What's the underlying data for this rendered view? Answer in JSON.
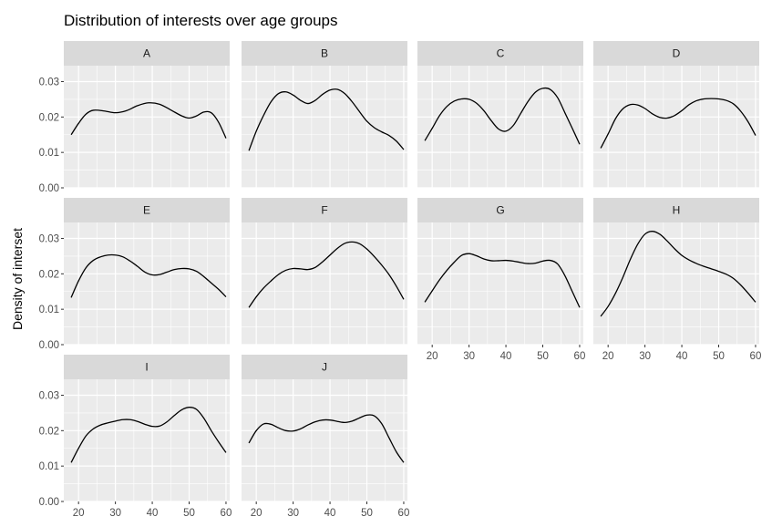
{
  "chart_data": {
    "type": "line",
    "title": "Distribution of interests over age groups",
    "xlabel": "",
    "ylabel": "Density of interset",
    "xlim": [
      16,
      61
    ],
    "ylim": [
      0,
      0.0345
    ],
    "xticks": [
      20,
      30,
      40,
      50,
      60
    ],
    "xtick_labels": [
      "20",
      "30",
      "40",
      "50",
      "60"
    ],
    "yticks": [
      0,
      0.01,
      0.02,
      0.03
    ],
    "ytick_labels": [
      "0.00",
      "0.01",
      "0.02",
      "0.03"
    ],
    "grid": true,
    "panel_color": "#ebebeb",
    "strip_color": "#d9d9d9",
    "line_color": "#000000",
    "panels": [
      {
        "name": "A",
        "x": [
          18,
          20,
          22,
          24,
          27,
          30,
          33,
          36,
          39,
          42,
          45,
          48,
          50,
          52,
          54,
          56,
          58,
          60
        ],
        "y": [
          0.015,
          0.0182,
          0.0208,
          0.0219,
          0.0217,
          0.0212,
          0.0218,
          0.0232,
          0.024,
          0.0236,
          0.022,
          0.0203,
          0.0197,
          0.0203,
          0.0214,
          0.0212,
          0.0185,
          0.014
        ]
      },
      {
        "name": "B",
        "x": [
          18,
          20,
          22,
          24,
          26,
          28,
          30,
          32,
          34,
          36,
          38,
          40,
          42,
          44,
          46,
          48,
          50,
          52,
          54,
          56,
          58,
          60
        ],
        "y": [
          0.0105,
          0.016,
          0.0205,
          0.0243,
          0.0266,
          0.0271,
          0.0262,
          0.0247,
          0.0238,
          0.0247,
          0.0264,
          0.0276,
          0.0278,
          0.0266,
          0.0243,
          0.0215,
          0.0188,
          0.017,
          0.0158,
          0.0148,
          0.0132,
          0.0108
        ]
      },
      {
        "name": "C",
        "x": [
          18,
          20,
          22,
          24,
          26,
          28,
          30,
          32,
          34,
          36,
          38,
          40,
          42,
          44,
          46,
          48,
          50,
          52,
          54,
          56,
          58,
          60
        ],
        "y": [
          0.0133,
          0.0168,
          0.0204,
          0.023,
          0.0245,
          0.0251,
          0.025,
          0.0239,
          0.0218,
          0.019,
          0.0166,
          0.016,
          0.0176,
          0.021,
          0.0244,
          0.027,
          0.0281,
          0.0278,
          0.0255,
          0.0212,
          0.0168,
          0.0123
        ]
      },
      {
        "name": "D",
        "x": [
          18,
          20,
          22,
          24,
          26,
          28,
          30,
          32,
          34,
          36,
          38,
          40,
          42,
          44,
          46,
          48,
          50,
          52,
          54,
          56,
          58,
          60
        ],
        "y": [
          0.0112,
          0.0152,
          0.0195,
          0.0223,
          0.0235,
          0.0234,
          0.0224,
          0.0209,
          0.0199,
          0.0197,
          0.0204,
          0.0218,
          0.0235,
          0.0246,
          0.0251,
          0.0252,
          0.0251,
          0.0247,
          0.0237,
          0.0216,
          0.0186,
          0.0148
        ]
      },
      {
        "name": "E",
        "x": [
          18,
          20,
          22,
          24,
          26,
          28,
          30,
          32,
          34,
          36,
          38,
          40,
          42,
          44,
          46,
          48,
          50,
          52,
          54,
          56,
          58,
          60
        ],
        "y": [
          0.0133,
          0.018,
          0.0217,
          0.0238,
          0.0248,
          0.0253,
          0.0253,
          0.0248,
          0.0236,
          0.0221,
          0.0205,
          0.0197,
          0.0198,
          0.0205,
          0.0212,
          0.0215,
          0.0214,
          0.0207,
          0.0192,
          0.0174,
          0.0156,
          0.0135
        ]
      },
      {
        "name": "F",
        "x": [
          18,
          20,
          22,
          24,
          26,
          28,
          30,
          32,
          34,
          36,
          38,
          40,
          42,
          44,
          46,
          48,
          50,
          52,
          54,
          56,
          58,
          60
        ],
        "y": [
          0.0105,
          0.0135,
          0.016,
          0.018,
          0.0198,
          0.021,
          0.0215,
          0.0214,
          0.0212,
          0.0218,
          0.0234,
          0.0253,
          0.0272,
          0.0286,
          0.029,
          0.0285,
          0.027,
          0.0249,
          0.0225,
          0.0198,
          0.0165,
          0.0128
        ]
      },
      {
        "name": "G",
        "x": [
          18,
          20,
          22,
          24,
          26,
          28,
          30,
          32,
          34,
          36,
          38,
          40,
          42,
          44,
          46,
          48,
          50,
          52,
          54,
          56,
          58,
          60
        ],
        "y": [
          0.012,
          0.0152,
          0.0183,
          0.021,
          0.0233,
          0.0252,
          0.0257,
          0.0251,
          0.0242,
          0.0237,
          0.0237,
          0.0238,
          0.0236,
          0.0232,
          0.0229,
          0.023,
          0.0236,
          0.0238,
          0.0228,
          0.0195,
          0.015,
          0.0105
        ]
      },
      {
        "name": "H",
        "x": [
          18,
          20,
          22,
          24,
          26,
          28,
          30,
          32,
          34,
          36,
          38,
          40,
          42,
          44,
          46,
          48,
          50,
          52,
          54,
          56,
          58,
          60
        ],
        "y": [
          0.008,
          0.0108,
          0.0145,
          0.019,
          0.024,
          0.0283,
          0.0312,
          0.032,
          0.0312,
          0.0293,
          0.0271,
          0.0252,
          0.0239,
          0.0229,
          0.0221,
          0.0214,
          0.0207,
          0.0199,
          0.0187,
          0.0168,
          0.0145,
          0.012
        ]
      },
      {
        "name": "I",
        "x": [
          18,
          20,
          22,
          24,
          26,
          28,
          30,
          32,
          34,
          36,
          38,
          40,
          42,
          44,
          46,
          48,
          50,
          52,
          54,
          56,
          58,
          60
        ],
        "y": [
          0.011,
          0.015,
          0.0185,
          0.0205,
          0.0216,
          0.0222,
          0.0227,
          0.0231,
          0.0231,
          0.0226,
          0.0218,
          0.0212,
          0.0213,
          0.0225,
          0.0243,
          0.0259,
          0.0266,
          0.026,
          0.0235,
          0.02,
          0.0168,
          0.0138
        ]
      },
      {
        "name": "J",
        "x": [
          18,
          20,
          22,
          24,
          26,
          28,
          30,
          32,
          34,
          36,
          38,
          40,
          42,
          44,
          46,
          48,
          50,
          52,
          54,
          56,
          58,
          60
        ],
        "y": [
          0.0165,
          0.02,
          0.0219,
          0.0218,
          0.0208,
          0.02,
          0.0199,
          0.0205,
          0.0216,
          0.0225,
          0.023,
          0.023,
          0.0226,
          0.0223,
          0.0227,
          0.0236,
          0.0244,
          0.0242,
          0.022,
          0.018,
          0.014,
          0.011
        ]
      }
    ]
  }
}
